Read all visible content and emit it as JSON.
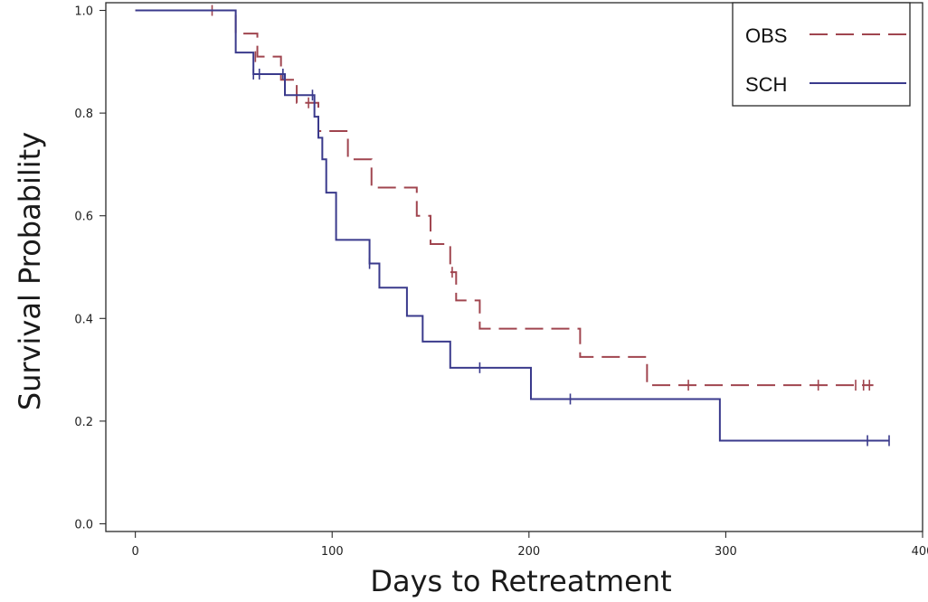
{
  "chart_data": {
    "type": "line",
    "title": "",
    "xlabel": "Days to Retreatment",
    "ylabel": "Survival Probability",
    "xlim": [
      -15,
      400
    ],
    "ylim": [
      -0.015,
      1.015
    ],
    "xticks": [
      0,
      100,
      200,
      300,
      400
    ],
    "xtick_labels": [
      "0",
      "100",
      "200",
      "300",
      "400"
    ],
    "yticks": [
      0.0,
      0.2,
      0.4,
      0.6,
      0.8,
      1.0
    ],
    "ytick_labels": [
      "0.0",
      "0.2",
      "0.4",
      "0.6",
      "0.8",
      "1.0"
    ],
    "grid": false,
    "legend_position": "top-right",
    "series": [
      {
        "name": "OBS",
        "color": "#a0454f",
        "line_style": "dashed",
        "steps": [
          [
            0,
            1.0
          ],
          [
            51,
            0.955
          ],
          [
            62,
            0.91
          ],
          [
            74,
            0.865
          ],
          [
            82,
            0.82
          ],
          [
            93,
            0.765
          ],
          [
            108,
            0.71
          ],
          [
            120,
            0.655
          ],
          [
            143,
            0.6
          ],
          [
            150,
            0.545
          ],
          [
            160,
            0.49
          ],
          [
            163,
            0.435
          ],
          [
            175,
            0.38
          ],
          [
            226,
            0.325
          ],
          [
            260,
            0.27
          ],
          [
            375,
            0.27
          ]
        ],
        "censored": [
          [
            39,
            1.0
          ],
          [
            61,
            0.91
          ],
          [
            88,
            0.82
          ],
          [
            161,
            0.49
          ],
          [
            281,
            0.27
          ],
          [
            347,
            0.27
          ],
          [
            366,
            0.27
          ],
          [
            370,
            0.27
          ],
          [
            373,
            0.27
          ]
        ]
      },
      {
        "name": "SCH",
        "color": "#3a3a8c",
        "line_style": "solid",
        "steps": [
          [
            0,
            1.0
          ],
          [
            51,
            0.918
          ],
          [
            60,
            0.876
          ],
          [
            76,
            0.835
          ],
          [
            91,
            0.793
          ],
          [
            93,
            0.752
          ],
          [
            95,
            0.71
          ],
          [
            97,
            0.645
          ],
          [
            102,
            0.553
          ],
          [
            119,
            0.507
          ],
          [
            124,
            0.46
          ],
          [
            138,
            0.405
          ],
          [
            146,
            0.355
          ],
          [
            160,
            0.304
          ],
          [
            201,
            0.243
          ],
          [
            297,
            0.162
          ],
          [
            383,
            0.162
          ]
        ],
        "censored": [
          [
            60,
            0.876
          ],
          [
            63,
            0.876
          ],
          [
            75,
            0.876
          ],
          [
            90,
            0.835
          ],
          [
            119,
            0.507
          ],
          [
            175,
            0.304
          ],
          [
            221,
            0.243
          ],
          [
            372,
            0.162
          ],
          [
            383,
            0.162
          ]
        ]
      }
    ]
  }
}
